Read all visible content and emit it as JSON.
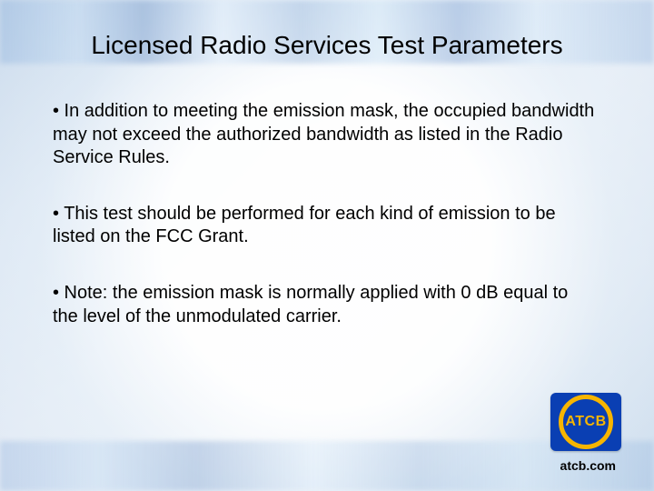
{
  "slide": {
    "title": "Licensed Radio Services Test Parameters",
    "title_fontsize": 28,
    "title_color": "#000000",
    "body_fontsize": 20,
    "body_color": "#000000",
    "bullets": [
      "• In addition to meeting the emission mask, the occupied bandwidth may not exceed the authorized bandwidth as listed in the Radio Service Rules.",
      "• This test should be performed for each kind of emission to be listed on the FCC Grant.",
      "• Note: the emission mask is normally applied with 0 dB equal to the level of the unmodulated carrier."
    ],
    "background": {
      "style": "blurred-light-bars",
      "primary_tint": "#d8e4f0",
      "secondary_tint": "#f5f8fb",
      "accent_blue": "#5a8cc8"
    }
  },
  "logo": {
    "text": "ATCB",
    "bg_color": "#0a3fb3",
    "ring_color": "#f7b500",
    "text_color": "#f7b500"
  },
  "footer": {
    "text": "atcb.com",
    "fontsize": 14,
    "weight": 700,
    "color": "#000000"
  }
}
